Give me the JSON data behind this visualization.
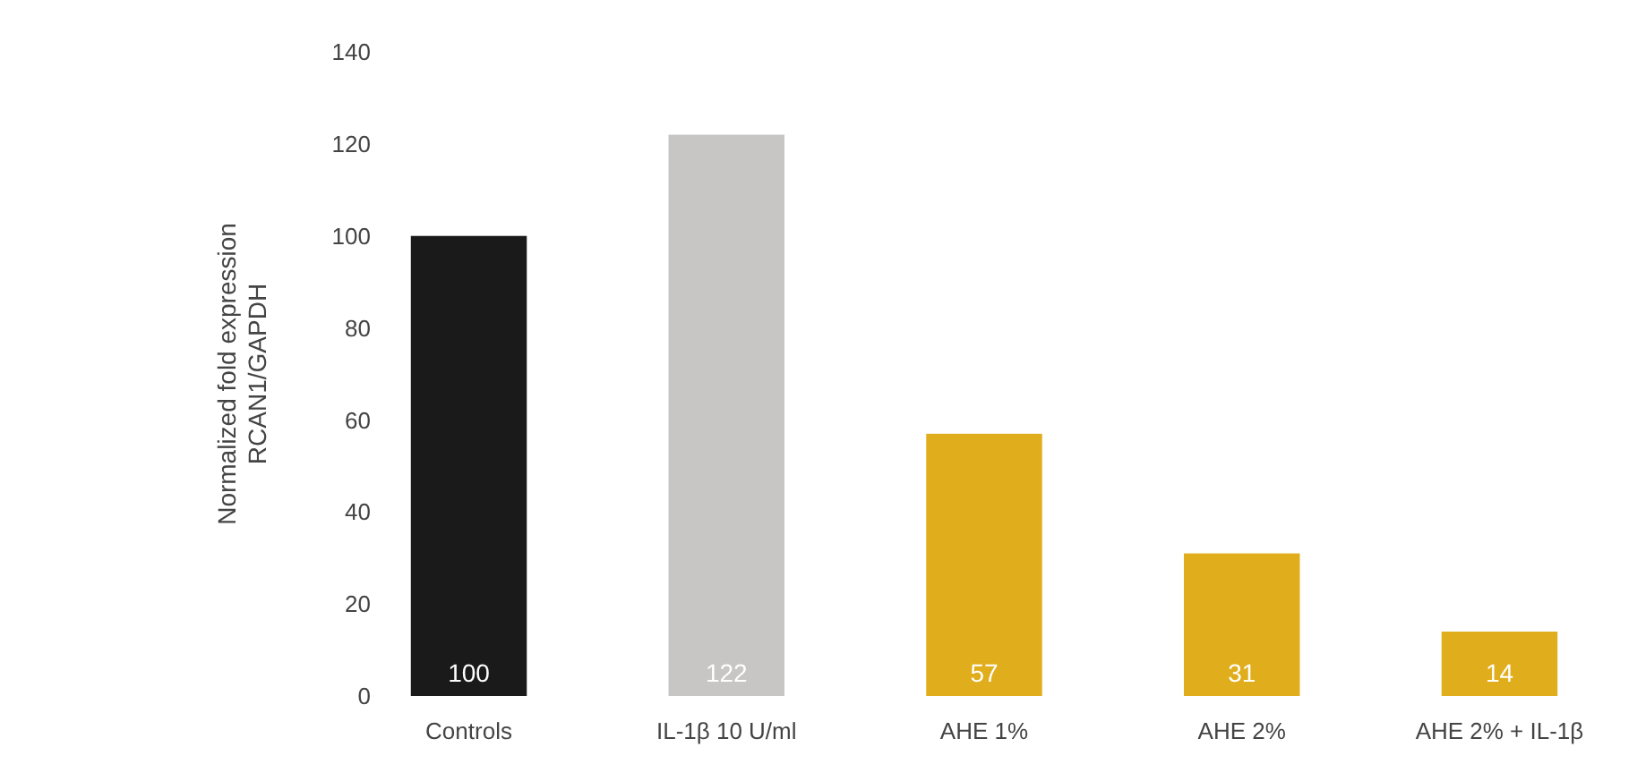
{
  "chart_data": {
    "type": "bar",
    "ylabel": "Normalized fold expression\nRCAN1/GAPDH",
    "categories": [
      "Controls",
      "IL-1β 10 U/ml",
      "AHE 1%",
      "AHE 2%",
      "AHE 2% + IL-1β"
    ],
    "values": [
      100,
      122,
      57,
      31,
      14
    ],
    "colors": [
      "#1a1a1a",
      "#c8c6c4",
      "#e0ad1c",
      "#e0ad1c",
      "#e0ad1c"
    ],
    "ylim": [
      0,
      140
    ],
    "yticks": [
      0,
      20,
      40,
      60,
      80,
      100,
      120,
      140
    ],
    "data_labels": true
  }
}
